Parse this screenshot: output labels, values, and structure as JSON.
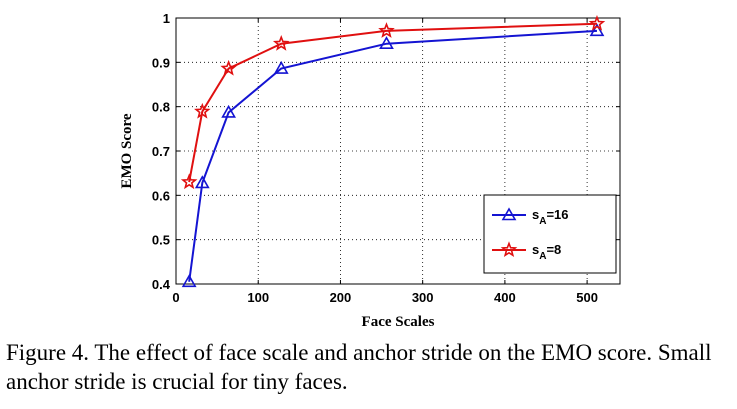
{
  "chart_data": {
    "type": "line",
    "xlabel": "Face Scales",
    "ylabel": "EMO Score",
    "xlim": [
      0,
      540
    ],
    "ylim": [
      0.4,
      1.0
    ],
    "xticks": [
      0,
      100,
      200,
      300,
      400,
      500
    ],
    "yticks": [
      0.4,
      0.5,
      0.6,
      0.7,
      0.8,
      0.9,
      1.0
    ],
    "ytick_labels": [
      "0.4",
      "0.5",
      "0.6",
      "0.7",
      "0.8",
      "0.9",
      "1"
    ],
    "grid": true,
    "legend_position": "lower-right",
    "x": [
      16,
      32,
      64,
      128,
      256,
      512
    ],
    "series": [
      {
        "name": "s_A=16",
        "legend_main": "s",
        "legend_sub": "A",
        "legend_rest": "=16",
        "color": "#1414d2",
        "marker": "triangle",
        "values": [
          0.405,
          0.628,
          0.787,
          0.886,
          0.942,
          0.971
        ]
      },
      {
        "name": "s_A=8",
        "legend_main": "s",
        "legend_sub": "A",
        "legend_rest": "=8",
        "color": "#e01010",
        "marker": "star",
        "values": [
          0.63,
          0.789,
          0.886,
          0.942,
          0.971,
          0.987
        ]
      }
    ]
  },
  "caption": "Figure 4. The effect of face scale and anchor stride on the EMO score. Small anchor stride is crucial for tiny faces."
}
